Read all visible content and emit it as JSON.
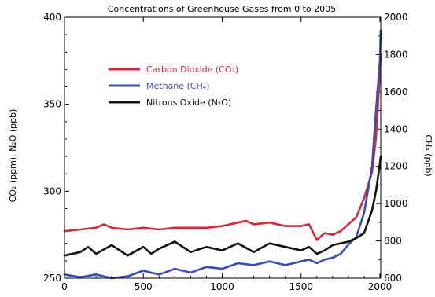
{
  "chart_data": {
    "type": "line",
    "title": "Concentrations of Greenhouse Gases from 0 to 2005",
    "xlabel": "",
    "ylabel_left": "CO₂ (ppm), N₂O (ppb)",
    "ylabel_right": "CH₄ (ppb)",
    "xlim": [
      0,
      2005
    ],
    "ylim_left": [
      250,
      400
    ],
    "ylim_right": [
      600,
      2000
    ],
    "x_ticks": [
      "0",
      "500",
      "1000",
      "1500",
      "2000"
    ],
    "y_ticks_left": [
      "250",
      "300",
      "350",
      "400"
    ],
    "y_ticks_right": [
      "600",
      "800",
      "1000",
      "1200",
      "1400",
      "1600",
      "1800",
      "2000"
    ],
    "legend": "upper-left",
    "grid": false,
    "series": [
      {
        "name": "Carbon Dioxide (CO₂)",
        "color": "#d02a3a",
        "axis": "left",
        "x": [
          0,
          100,
          200,
          250,
          300,
          400,
          500,
          600,
          700,
          800,
          900,
          1000,
          1100,
          1150,
          1200,
          1300,
          1400,
          1500,
          1550,
          1600,
          1650,
          1700,
          1750,
          1800,
          1850,
          1900,
          1950,
          1975,
          2000,
          2005
        ],
        "y": [
          277,
          278,
          279,
          281,
          279,
          278,
          279,
          278,
          279,
          279,
          279,
          280,
          282,
          283,
          281,
          282,
          280,
          280,
          281,
          272,
          276,
          275,
          277,
          281,
          285,
          296,
          311,
          331,
          369,
          379
        ]
      },
      {
        "name": "Methane (CH₄)",
        "color": "#3a4db0",
        "axis": "right",
        "x": [
          0,
          100,
          200,
          300,
          400,
          500,
          600,
          700,
          800,
          900,
          1000,
          1100,
          1200,
          1300,
          1400,
          1500,
          1550,
          1600,
          1650,
          1700,
          1750,
          1800,
          1850,
          1900,
          1950,
          1975,
          2000,
          2005
        ],
        "y": [
          620,
          605,
          620,
          600,
          610,
          640,
          620,
          650,
          630,
          660,
          650,
          680,
          670,
          690,
          670,
          690,
          700,
          680,
          700,
          710,
          730,
          780,
          820,
          950,
          1200,
          1500,
          1770,
          1930
        ]
      },
      {
        "name": "Nitrous Oxide (N₂O)",
        "color": "#111111",
        "axis": "left",
        "x": [
          0,
          100,
          150,
          200,
          300,
          400,
          500,
          550,
          600,
          700,
          800,
          900,
          1000,
          1100,
          1200,
          1300,
          1400,
          1500,
          1550,
          1600,
          1650,
          1700,
          1750,
          1800,
          1850,
          1900,
          1950,
          1975,
          2000,
          2005
        ],
        "y": [
          263,
          265,
          268,
          264,
          269,
          263,
          268,
          264,
          267,
          271,
          265,
          268,
          266,
          270,
          265,
          270,
          268,
          266,
          268,
          264,
          266,
          269,
          270,
          271,
          273,
          276,
          289,
          300,
          316,
          320
        ]
      }
    ]
  }
}
